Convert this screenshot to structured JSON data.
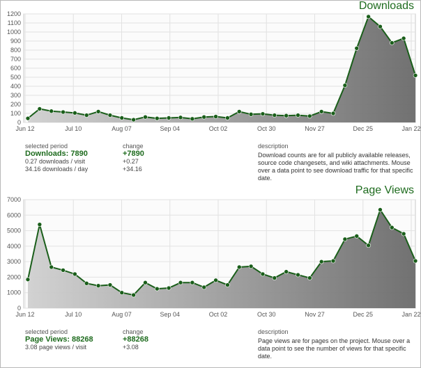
{
  "downloads": {
    "title": "Downloads",
    "selected_period_label": "selected period",
    "change_label": "change",
    "description_label": "description",
    "headline": "Downloads: 7890",
    "headline_change": "+7890",
    "rows": [
      {
        "value": "0.27 downloads / visit",
        "change": "+0.27"
      },
      {
        "value": "34.16 downloads / day",
        "change": "+34.16"
      }
    ],
    "description": "Download counts are for all publicly available releases, source code changesets, and wiki attachments. Mouse over a data point to see download traffic for that specific date."
  },
  "pageviews": {
    "title": "Page Views",
    "selected_period_label": "selected period",
    "change_label": "change",
    "description_label": "description",
    "headline": "Page Views: 88268",
    "headline_change": "+88268",
    "rows": [
      {
        "value": "3.08 page views / visit",
        "change": "+3.08"
      }
    ],
    "description": "Page views are for pages on the project. Mouse over a data point to see the number of views for that specific date."
  },
  "colors": {
    "accent": "#1e6b1e",
    "line": "#1a5e1a",
    "grid": "#e2e2e2",
    "fill_light": "#d0d0d0",
    "fill_dark": "#6a6a6a"
  },
  "chart_data": [
    {
      "type": "area",
      "title": "Downloads",
      "x_tick_labels": [
        "Jun 12",
        "Jul 10",
        "Aug 07",
        "Sep 04",
        "Oct 02",
        "Oct 30",
        "Nov 27",
        "Dec 25",
        "Jan 22"
      ],
      "y_tick_labels": [
        "0",
        "100",
        "200",
        "300",
        "400",
        "500",
        "600",
        "700",
        "800",
        "900",
        "1000",
        "1100",
        "1200"
      ],
      "ylim": [
        0,
        1200
      ],
      "grid": true,
      "values": [
        45,
        150,
        125,
        115,
        105,
        80,
        120,
        80,
        50,
        30,
        60,
        45,
        50,
        55,
        40,
        60,
        65,
        50,
        120,
        90,
        95,
        80,
        75,
        80,
        70,
        120,
        100,
        410,
        820,
        1170,
        1060,
        880,
        930,
        520
      ]
    },
    {
      "type": "area",
      "title": "Page Views",
      "x_tick_labels": [
        "Jun 12",
        "Jul 10",
        "Aug 07",
        "Sep 04",
        "Oct 02",
        "Oct 30",
        "Nov 27",
        "Dec 25",
        "Jan 22"
      ],
      "y_tick_labels": [
        "0",
        "1000",
        "2000",
        "3000",
        "4000",
        "5000",
        "6000",
        "7000"
      ],
      "ylim": [
        0,
        7000
      ],
      "grid": true,
      "values": [
        1850,
        5400,
        2650,
        2450,
        2200,
        1600,
        1450,
        1500,
        1000,
        850,
        1650,
        1250,
        1300,
        1650,
        1650,
        1350,
        1800,
        1500,
        2650,
        2700,
        2200,
        1950,
        2350,
        2150,
        1950,
        3000,
        3050,
        4450,
        4650,
        4050,
        6350,
        5200,
        4800,
        3050
      ]
    }
  ]
}
